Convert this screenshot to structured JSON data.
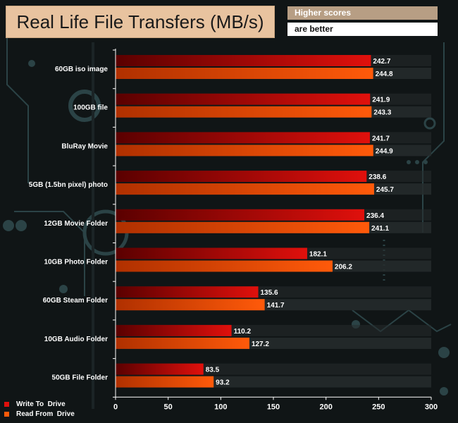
{
  "header": {
    "title": "Real Life File Transfers (MB/s)",
    "note_line1": "Higher scores",
    "note_line2": "are better"
  },
  "colors": {
    "write": "#e0100c",
    "read": "#ff5a0a",
    "track": "#262b2d",
    "circuit": "#2b4346"
  },
  "chart_data": {
    "type": "bar",
    "orientation": "horizontal",
    "title": "Real Life File Transfers (MB/s)",
    "categories": [
      "60GB iso image",
      "100GB file",
      "BluRay Movie",
      "5GB (1.5bn pixel) photo",
      "12GB Movie Folder",
      "10GB Photo Folder",
      "60GB Steam Folder",
      "10GB Audio Folder",
      "50GB File Folder"
    ],
    "series": [
      {
        "name": "Write To  Drive",
        "values": [
          242.7,
          241.9,
          241.7,
          238.6,
          236.4,
          182.1,
          135.6,
          110.2,
          83.5
        ]
      },
      {
        "name": "Read From  Drive",
        "values": [
          244.8,
          243.3,
          244.9,
          245.7,
          241.1,
          206.2,
          141.7,
          127.2,
          93.2
        ]
      }
    ],
    "xlim": [
      0,
      300
    ],
    "xticks": [
      0,
      50,
      100,
      150,
      200,
      250,
      300
    ],
    "legend_position": "bottom-left",
    "grid": false
  }
}
